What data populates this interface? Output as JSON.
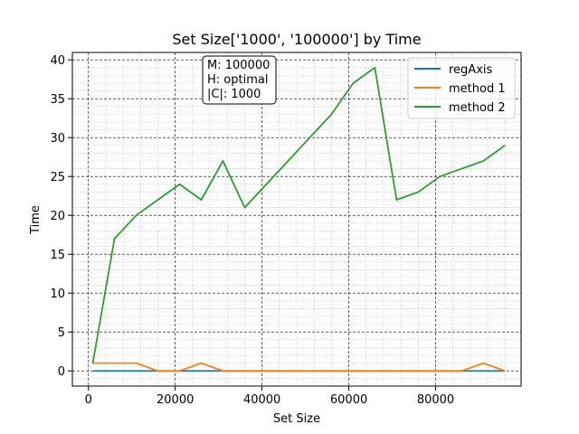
{
  "chart_data": {
    "type": "line",
    "title": "Set Size['1000', '100000'] by Time",
    "xlabel": "Set Size",
    "ylabel": "Time",
    "xlim": [
      -3700,
      99700
    ],
    "ylim": [
      -1.95,
      40.95
    ],
    "x_ticks": [
      0,
      20000,
      40000,
      60000,
      80000
    ],
    "y_ticks": [
      0,
      5,
      10,
      15,
      20,
      25,
      30,
      35,
      40
    ],
    "grid": true,
    "minor_grid": true,
    "legend_position": "top-right",
    "x": [
      1000,
      6000,
      11000,
      16000,
      21000,
      26000,
      31000,
      36000,
      41000,
      46000,
      51000,
      56000,
      61000,
      66000,
      71000,
      76000,
      81000,
      86000,
      91000,
      96000
    ],
    "series": [
      {
        "name": "regAxis",
        "color": "#1f77b4",
        "values": [
          0,
          0,
          0,
          0,
          0,
          0,
          0,
          0,
          0,
          0,
          0,
          0,
          0,
          0,
          0,
          0,
          0,
          0,
          0,
          0
        ]
      },
      {
        "name": "method 1",
        "color": "#ff7f0e",
        "values": [
          1,
          1,
          1,
          0,
          0,
          1,
          0,
          0,
          0,
          0,
          0,
          0,
          0,
          0,
          0,
          0,
          0,
          0,
          1,
          0
        ]
      },
      {
        "name": "method 2",
        "color": "#2ca02c",
        "values": [
          1,
          17,
          20,
          22,
          24,
          22,
          27,
          21,
          24,
          27,
          30,
          33,
          37,
          39,
          22,
          23,
          25,
          26,
          27,
          29
        ]
      }
    ],
    "annotation": [
      "M: 100000",
      "H: optimal",
      "|C|: 1000"
    ]
  }
}
